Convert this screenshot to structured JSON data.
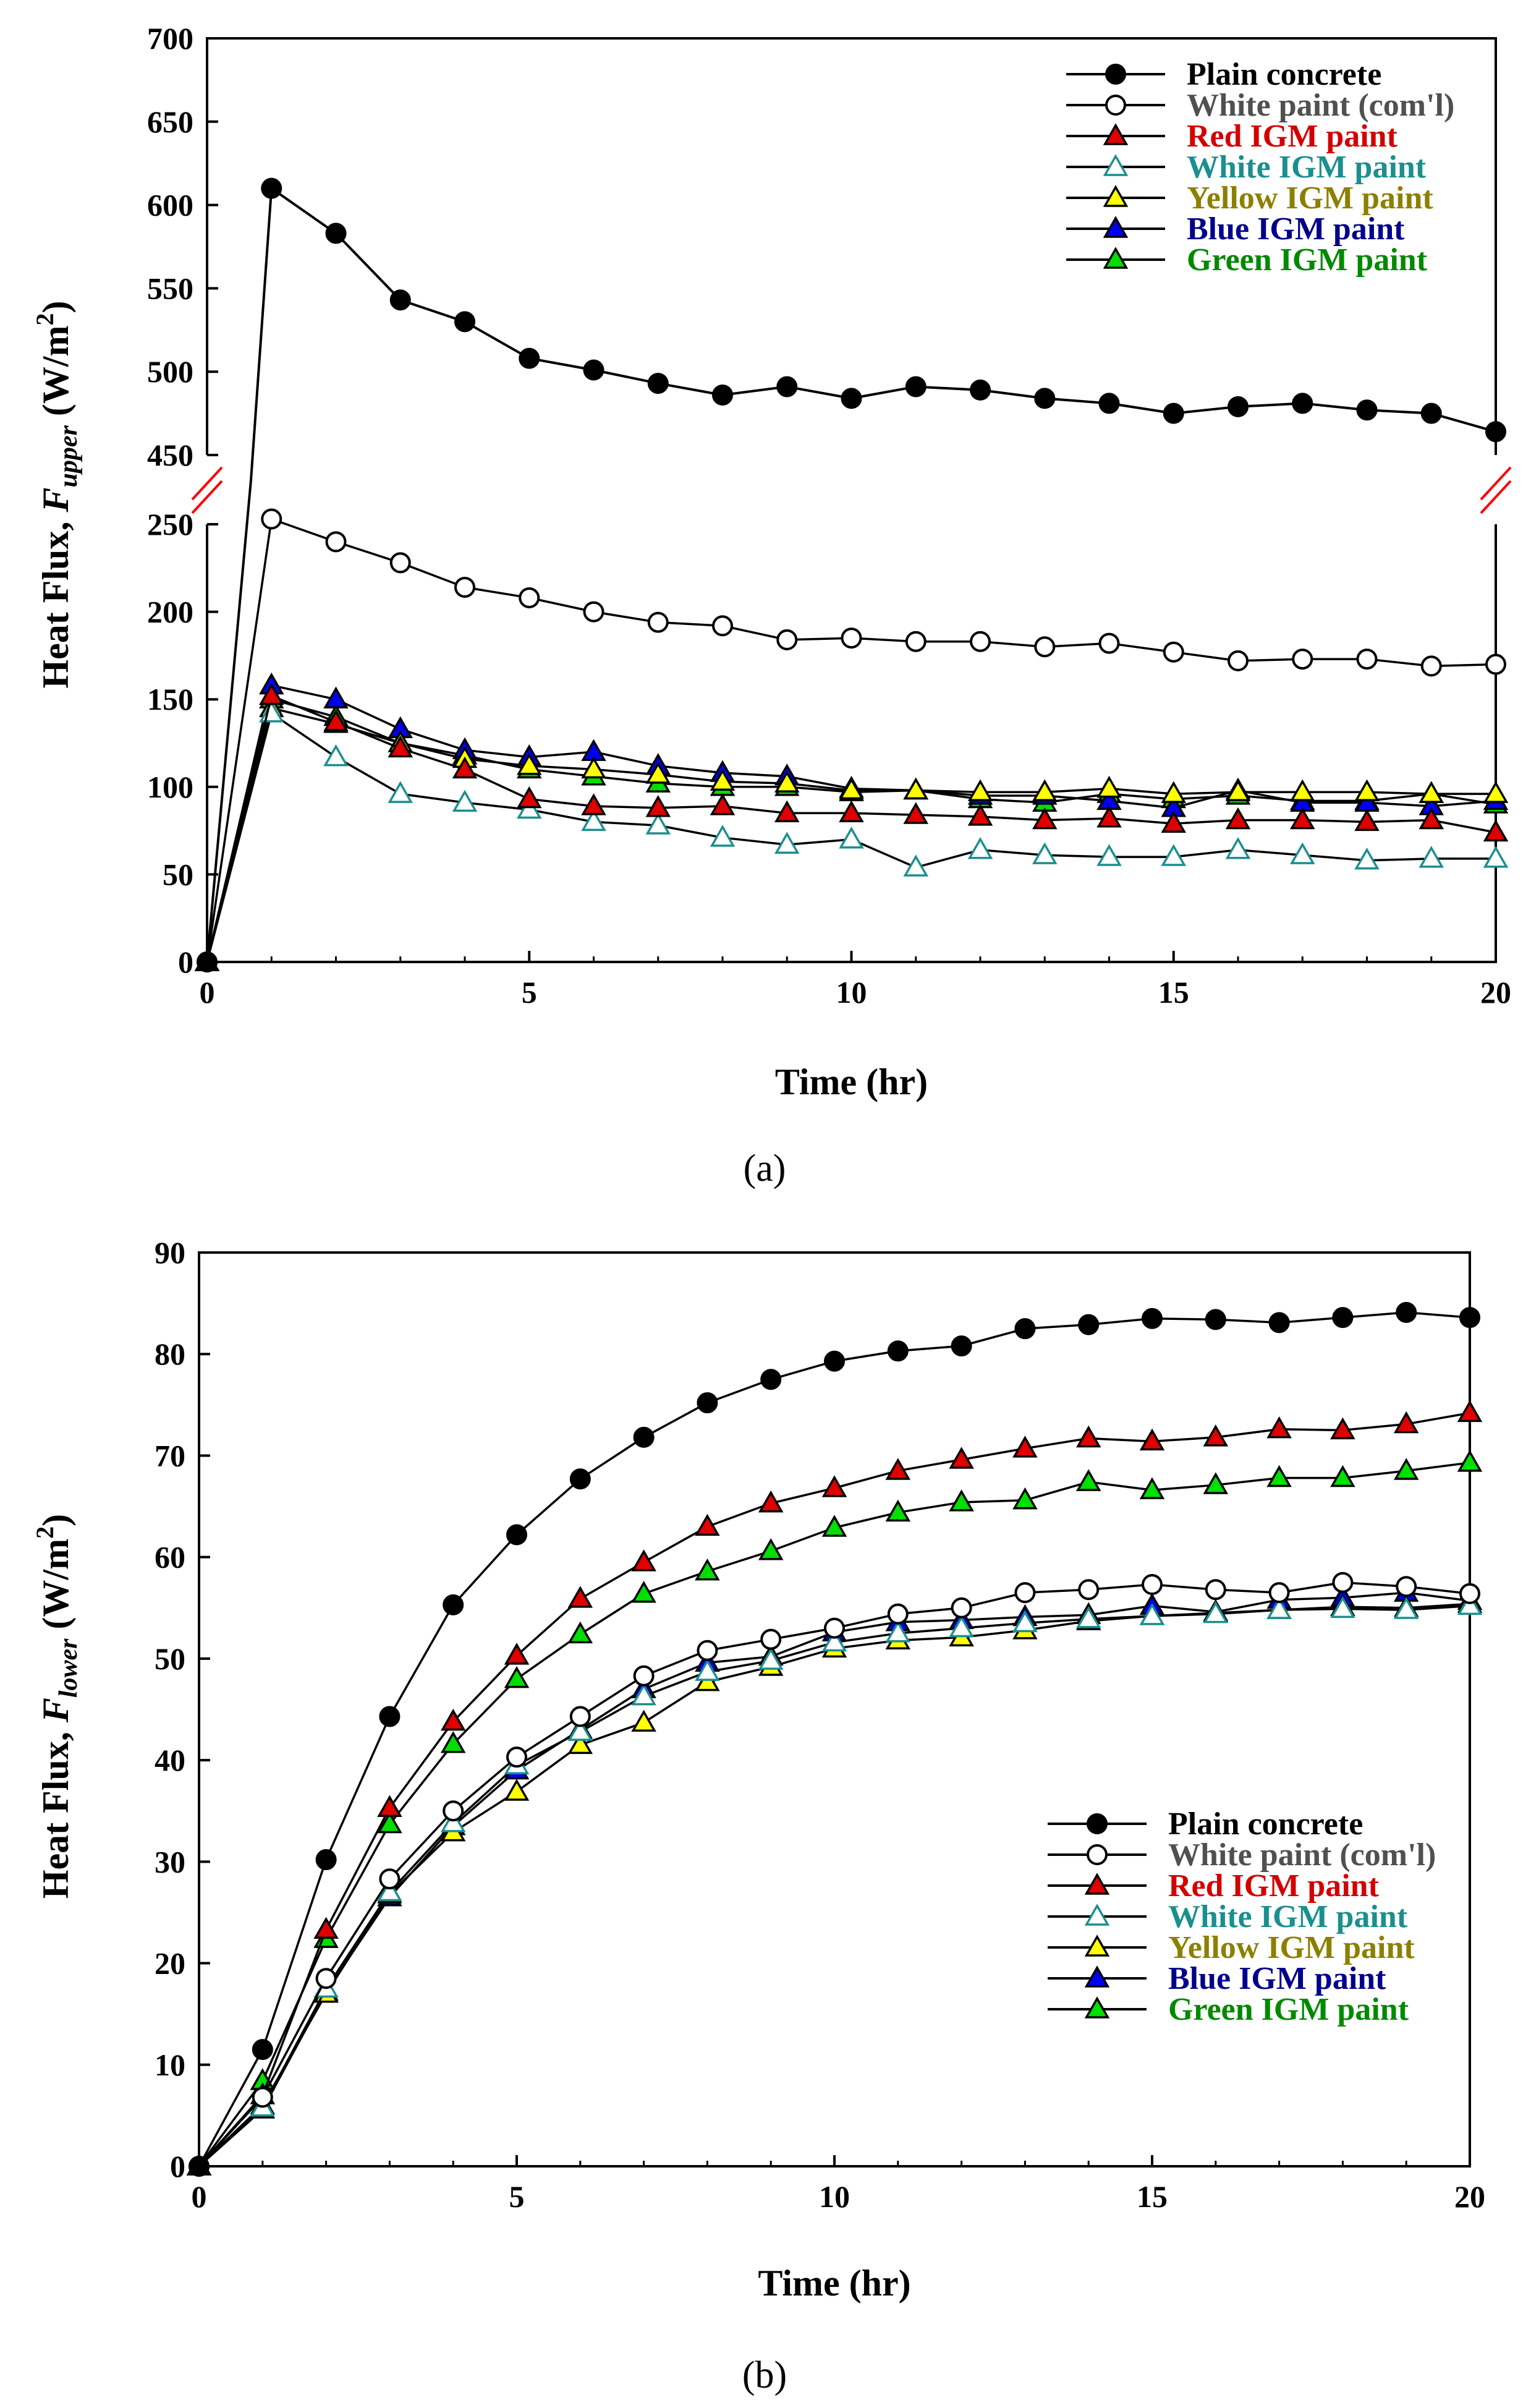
{
  "figure": {
    "panel_labels": [
      "(a)",
      "(b)"
    ],
    "colors": {
      "plain": "#000000",
      "white_com": "#505050",
      "red": "#d40000",
      "white_igm": "#1a8f8f",
      "yellow": "#8c8000",
      "blue": "#00008b",
      "green": "#008a00",
      "red_fill": "#e00000",
      "cyan_fill": "#ffffff",
      "yellow_fill": "#ffff00",
      "blue_fill": "#0000ee",
      "green_fill": "#00e000",
      "break_mark": "#ff0000"
    }
  },
  "chart_data": [
    {
      "type": "line",
      "panel": "(a)",
      "xlabel": "Time (hr)",
      "ylabel": {
        "main": "Heat Flux, ",
        "var": "F",
        "sub": "upper",
        "unit_pre": " (W/m",
        "unit_sup": "2",
        "unit_post": ")"
      },
      "xlim": [
        0,
        20
      ],
      "x_ticks": [
        "0",
        "5",
        "10",
        "15",
        "20"
      ],
      "broken_axis": {
        "upper_range": [
          450,
          700
        ],
        "lower_range": [
          0,
          250
        ],
        "upper_ticks": [
          "450",
          "500",
          "550",
          "600",
          "650",
          "700"
        ],
        "lower_ticks": [
          "0",
          "50",
          "100",
          "150",
          "200",
          "250"
        ]
      },
      "legend_position": "top-right",
      "x": [
        0,
        1,
        2,
        3,
        4,
        5,
        6,
        7,
        8,
        9,
        10,
        11,
        12,
        13,
        14,
        15,
        16,
        17,
        18,
        19,
        20
      ],
      "series": [
        {
          "name": "Plain concrete",
          "key": "plain",
          "marker": "circle-filled",
          "values": [
            0,
            610,
            583,
            543,
            530,
            508,
            501,
            493,
            486,
            491,
            484,
            491,
            489,
            484,
            481,
            475,
            479,
            481,
            477,
            475,
            464
          ]
        },
        {
          "name": "White paint (com'l)",
          "key": "white_com",
          "marker": "circle-open",
          "values": [
            0,
            253,
            240,
            228,
            214,
            208,
            200,
            194,
            192,
            184,
            185,
            183,
            183,
            180,
            182,
            177,
            172,
            173,
            173,
            169,
            170
          ]
        },
        {
          "name": "Red IGM paint",
          "key": "red",
          "marker": "triangle-red",
          "values": [
            0,
            152,
            137,
            122,
            110,
            93,
            89,
            88,
            89,
            85,
            85,
            84,
            83,
            81,
            82,
            79,
            81,
            81,
            80,
            81,
            74
          ]
        },
        {
          "name": "White IGM paint",
          "key": "white_igm",
          "marker": "triangle-open",
          "values": [
            0,
            142,
            117,
            96,
            91,
            87,
            80,
            78,
            71,
            67,
            70,
            54,
            64,
            61,
            60,
            60,
            64,
            61,
            58,
            59,
            59
          ]
        },
        {
          "name": "Yellow IGM paint",
          "key": "yellow",
          "marker": "triangle-yellow",
          "values": [
            0,
            145,
            136,
            125,
            116,
            112,
            110,
            107,
            103,
            102,
            98,
            98,
            97,
            97,
            99,
            96,
            97,
            97,
            97,
            96,
            96
          ]
        },
        {
          "name": "Blue IGM paint",
          "key": "blue",
          "marker": "triangle-blue",
          "values": [
            0,
            158,
            150,
            133,
            121,
            117,
            120,
            112,
            108,
            106,
            99,
            98,
            95,
            95,
            92,
            88,
            98,
            91,
            91,
            89,
            92
          ]
        },
        {
          "name": "Green IGM paint",
          "key": "green",
          "marker": "triangle-green",
          "values": [
            0,
            150,
            140,
            125,
            118,
            110,
            106,
            102,
            100,
            100,
            97,
            98,
            93,
            91,
            96,
            93,
            95,
            92,
            92,
            96,
            90
          ]
        }
      ]
    },
    {
      "type": "line",
      "panel": "(b)",
      "xlabel": "Time (hr)",
      "ylabel": {
        "main": "Heat Flux, ",
        "var": "F",
        "sub": "lower",
        "unit_pre": " (W/m",
        "unit_sup": "2",
        "unit_post": ")"
      },
      "xlim": [
        0,
        20
      ],
      "ylim": [
        0,
        90
      ],
      "x_ticks": [
        "0",
        "5",
        "10",
        "15",
        "20"
      ],
      "y_ticks": [
        "0",
        "10",
        "20",
        "30",
        "40",
        "50",
        "60",
        "70",
        "80",
        "90"
      ],
      "legend_position": "bottom-right",
      "x": [
        0,
        1,
        2,
        3,
        4,
        5,
        6,
        7,
        8,
        9,
        10,
        11,
        12,
        13,
        14,
        15,
        16,
        17,
        18,
        19,
        20
      ],
      "series": [
        {
          "name": "Plain concrete",
          "key": "plain",
          "marker": "circle-filled",
          "values": [
            0,
            11.5,
            30.2,
            44.3,
            55.3,
            62.2,
            67.7,
            71.8,
            75.2,
            77.5,
            79.3,
            80.3,
            80.8,
            82.5,
            82.9,
            83.5,
            83.4,
            83.1,
            83.6,
            84.1,
            83.6
          ]
        },
        {
          "name": "White paint (com'l)",
          "key": "white_com",
          "marker": "circle-open",
          "values": [
            0,
            6.8,
            18.5,
            28.3,
            35.0,
            40.3,
            44.3,
            48.3,
            50.8,
            51.9,
            53.0,
            54.4,
            55.0,
            56.5,
            56.8,
            57.3,
            56.8,
            56.5,
            57.5,
            57.1,
            56.4
          ]
        },
        {
          "name": "Red IGM paint",
          "key": "red",
          "marker": "triangle-red",
          "values": [
            0,
            7.0,
            23.3,
            35.3,
            43.8,
            50.3,
            55.9,
            59.5,
            63.0,
            65.3,
            66.8,
            68.5,
            69.6,
            70.7,
            71.7,
            71.4,
            71.8,
            72.6,
            72.5,
            73.1,
            74.2
          ]
        },
        {
          "name": "White IGM paint",
          "key": "white_igm",
          "marker": "triangle-open",
          "values": [
            0,
            5.8,
            17.5,
            27.0,
            33.8,
            39.5,
            42.8,
            46.3,
            48.7,
            49.8,
            51.6,
            52.5,
            53.0,
            53.5,
            53.9,
            54.2,
            54.4,
            54.8,
            54.9,
            54.8,
            55.2
          ]
        },
        {
          "name": "Yellow IGM paint",
          "key": "yellow",
          "marker": "triangle-yellow",
          "values": [
            0,
            6.0,
            17.0,
            26.8,
            32.9,
            36.9,
            41.5,
            43.7,
            47.7,
            49.2,
            51.0,
            51.8,
            52.1,
            52.8,
            53.7,
            54.2,
            54.5,
            54.8,
            55.1,
            55.0,
            55.4
          ]
        },
        {
          "name": "Blue IGM paint",
          "key": "blue",
          "marker": "triangle-blue",
          "values": [
            0,
            5.6,
            17.2,
            26.5,
            33.5,
            39.0,
            43.0,
            47.0,
            49.6,
            50.2,
            52.6,
            53.6,
            53.8,
            54.1,
            54.3,
            55.2,
            54.6,
            55.8,
            56.0,
            56.5,
            55.7
          ]
        },
        {
          "name": "Green IGM paint",
          "key": "green",
          "marker": "triangle-green",
          "values": [
            0,
            8.4,
            22.4,
            33.7,
            41.6,
            48.0,
            52.4,
            56.4,
            58.6,
            60.6,
            62.9,
            64.4,
            65.4,
            65.6,
            67.4,
            66.6,
            67.1,
            67.8,
            67.8,
            68.5,
            69.3
          ]
        }
      ]
    }
  ]
}
